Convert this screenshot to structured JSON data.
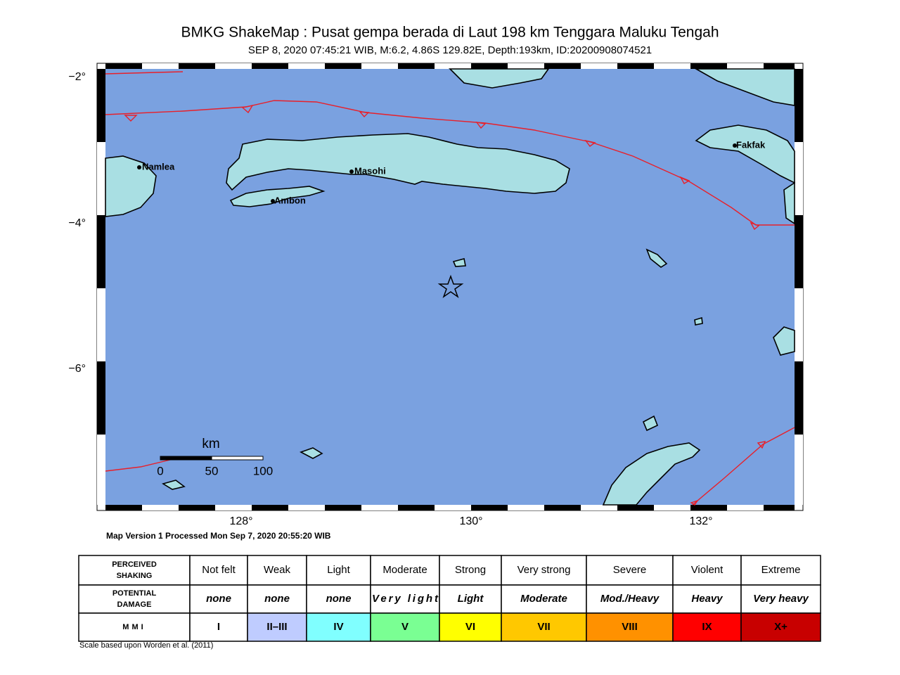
{
  "header": {
    "title": "BMKG ShakeMap : Pusat gempa berada di Laut 198 km Tenggara Maluku Tengah",
    "subtitle": "SEP 8, 2020 07:45:21 WIB, M:6.2, 4.86S 129.82E, Depth:193km, ID:20200908074521"
  },
  "map": {
    "lat_ticks": [
      "−2°",
      "−4°",
      "−6°"
    ],
    "lon_ticks": [
      "128°",
      "130°",
      "132°"
    ],
    "places": [
      "Namlea",
      "Masohi",
      "Ambon",
      "Fakfak"
    ],
    "scale": {
      "unit": "km",
      "labels": [
        "0",
        "50",
        "100"
      ]
    }
  },
  "footer": {
    "version": "Map Version 1 Processed Mon Sep  7, 2020 20:55:20 WIB",
    "note": "Scale based upon Worden et al. (2011)"
  },
  "legend": {
    "rows": [
      {
        "label": "PERCEIVED SHAKING",
        "cells": [
          "Not felt",
          "Weak",
          "Light",
          "Moderate",
          "Strong",
          "Very strong",
          "Severe",
          "Violent",
          "Extreme"
        ]
      },
      {
        "label": "POTENTIAL DAMAGE",
        "cells": [
          "none",
          "none",
          "none",
          "Very light",
          "Light",
          "Moderate",
          "Mod./Heavy",
          "Heavy",
          "Very heavy"
        ]
      },
      {
        "label": "MMI",
        "cells": [
          "I",
          "II–III",
          "IV",
          "V",
          "VI",
          "VII",
          "VIII",
          "IX",
          "X+"
        ]
      }
    ],
    "mmi_colors": [
      "#ffffff",
      "#bfccff",
      "#80ffff",
      "#7aff93",
      "#ffff00",
      "#ffc800",
      "#ff9100",
      "#ff0000",
      "#c80000"
    ]
  }
}
